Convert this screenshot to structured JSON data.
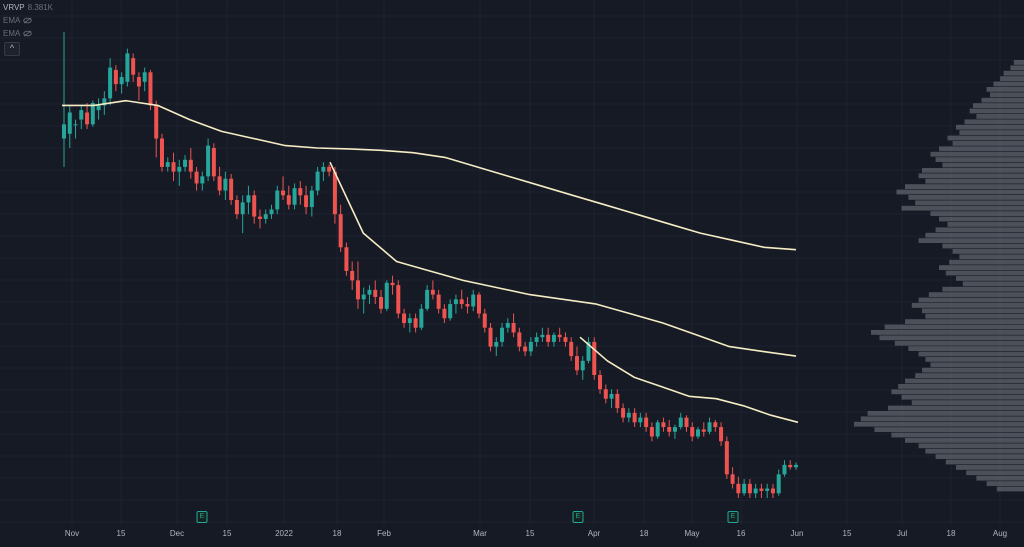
{
  "legend": {
    "vrvp_label": "VRVP",
    "vrvp_value": "8.381K",
    "ema1_label": "EMA",
    "ema2_label": "EMA",
    "collapse_glyph": "^"
  },
  "x_axis_labels": [
    "Nov",
    "15",
    "Dec",
    "15",
    "2022",
    "18",
    "Feb",
    "Mar",
    "15",
    "Apr",
    "18",
    "May",
    "16",
    "Jun",
    "15",
    "Jul",
    "18",
    "Aug"
  ],
  "earnings_markers": [
    {
      "date": "Dec 6",
      "glyph": "E"
    },
    {
      "date": "Mar 29",
      "glyph": "E"
    },
    {
      "date": "May 16",
      "glyph": "E"
    }
  ],
  "colors": {
    "background": "#161a25",
    "up": "#26a69a",
    "down": "#ef5350",
    "ema": "#f5ecc4",
    "volume_profile": "#7a7d85"
  },
  "chart_data": {
    "type": "candlestick",
    "x_type": "date",
    "x_range": [
      "2021-10-29",
      "2022-08-07"
    ],
    "y_range_relative": [
      0,
      1
    ],
    "candles": [
      [
        0.76,
        0.985,
        0.7,
        0.79
      ],
      [
        0.77,
        0.83,
        0.74,
        0.815
      ],
      [
        0.79,
        0.8,
        0.76,
        0.79
      ],
      [
        0.8,
        0.83,
        0.78,
        0.82
      ],
      [
        0.815,
        0.835,
        0.78,
        0.79
      ],
      [
        0.79,
        0.84,
        0.785,
        0.835
      ],
      [
        0.82,
        0.845,
        0.8,
        0.83
      ],
      [
        0.83,
        0.86,
        0.81,
        0.845
      ],
      [
        0.845,
        0.93,
        0.83,
        0.91
      ],
      [
        0.905,
        0.915,
        0.86,
        0.875
      ],
      [
        0.875,
        0.9,
        0.855,
        0.89
      ],
      [
        0.88,
        0.95,
        0.87,
        0.94
      ],
      [
        0.93,
        0.94,
        0.88,
        0.895
      ],
      [
        0.89,
        0.9,
        0.84,
        0.87
      ],
      [
        0.88,
        0.91,
        0.86,
        0.9
      ],
      [
        0.9,
        0.905,
        0.82,
        0.83
      ],
      [
        0.83,
        0.84,
        0.72,
        0.76
      ],
      [
        0.76,
        0.77,
        0.69,
        0.7
      ],
      [
        0.7,
        0.72,
        0.69,
        0.71
      ],
      [
        0.71,
        0.73,
        0.67,
        0.69
      ],
      [
        0.69,
        0.715,
        0.66,
        0.7
      ],
      [
        0.7,
        0.725,
        0.69,
        0.715
      ],
      [
        0.715,
        0.74,
        0.675,
        0.69
      ],
      [
        0.69,
        0.7,
        0.65,
        0.665
      ],
      [
        0.665,
        0.69,
        0.65,
        0.68
      ],
      [
        0.68,
        0.76,
        0.67,
        0.745
      ],
      [
        0.74,
        0.75,
        0.67,
        0.68
      ],
      [
        0.68,
        0.7,
        0.64,
        0.65
      ],
      [
        0.65,
        0.69,
        0.63,
        0.675
      ],
      [
        0.675,
        0.685,
        0.62,
        0.63
      ],
      [
        0.63,
        0.64,
        0.59,
        0.6
      ],
      [
        0.6,
        0.64,
        0.56,
        0.625
      ],
      [
        0.625,
        0.66,
        0.6,
        0.64
      ],
      [
        0.64,
        0.65,
        0.58,
        0.595
      ],
      [
        0.595,
        0.61,
        0.57,
        0.59
      ],
      [
        0.59,
        0.61,
        0.58,
        0.6
      ],
      [
        0.6,
        0.62,
        0.59,
        0.61
      ],
      [
        0.61,
        0.66,
        0.6,
        0.65
      ],
      [
        0.65,
        0.68,
        0.63,
        0.64
      ],
      [
        0.64,
        0.66,
        0.61,
        0.62
      ],
      [
        0.62,
        0.665,
        0.61,
        0.655
      ],
      [
        0.655,
        0.67,
        0.62,
        0.64
      ],
      [
        0.64,
        0.66,
        0.6,
        0.615
      ],
      [
        0.615,
        0.66,
        0.595,
        0.65
      ],
      [
        0.65,
        0.7,
        0.64,
        0.69
      ],
      [
        0.69,
        0.71,
        0.67,
        0.7
      ],
      [
        0.7,
        0.705,
        0.68,
        0.69
      ],
      [
        0.69,
        0.7,
        0.58,
        0.6
      ],
      [
        0.6,
        0.62,
        0.52,
        0.53
      ],
      [
        0.53,
        0.54,
        0.47,
        0.48
      ],
      [
        0.48,
        0.5,
        0.44,
        0.46
      ],
      [
        0.46,
        0.5,
        0.4,
        0.42
      ],
      [
        0.42,
        0.445,
        0.39,
        0.43
      ],
      [
        0.43,
        0.45,
        0.41,
        0.44
      ],
      [
        0.44,
        0.46,
        0.41,
        0.425
      ],
      [
        0.425,
        0.44,
        0.39,
        0.4
      ],
      [
        0.4,
        0.46,
        0.395,
        0.455
      ],
      [
        0.455,
        0.47,
        0.43,
        0.45
      ],
      [
        0.45,
        0.46,
        0.38,
        0.39
      ],
      [
        0.39,
        0.4,
        0.36,
        0.37
      ],
      [
        0.37,
        0.39,
        0.35,
        0.38
      ],
      [
        0.38,
        0.39,
        0.35,
        0.36
      ],
      [
        0.36,
        0.41,
        0.355,
        0.4
      ],
      [
        0.4,
        0.45,
        0.395,
        0.44
      ],
      [
        0.44,
        0.46,
        0.42,
        0.43
      ],
      [
        0.43,
        0.44,
        0.39,
        0.4
      ],
      [
        0.4,
        0.41,
        0.37,
        0.38
      ],
      [
        0.38,
        0.42,
        0.375,
        0.41
      ],
      [
        0.41,
        0.43,
        0.39,
        0.42
      ],
      [
        0.42,
        0.44,
        0.4,
        0.41
      ],
      [
        0.41,
        0.425,
        0.39,
        0.405
      ],
      [
        0.405,
        0.44,
        0.395,
        0.43
      ],
      [
        0.43,
        0.435,
        0.38,
        0.39
      ],
      [
        0.39,
        0.4,
        0.35,
        0.36
      ],
      [
        0.36,
        0.37,
        0.31,
        0.32
      ],
      [
        0.32,
        0.34,
        0.3,
        0.33
      ],
      [
        0.33,
        0.37,
        0.32,
        0.36
      ],
      [
        0.36,
        0.38,
        0.35,
        0.37
      ],
      [
        0.37,
        0.39,
        0.34,
        0.35
      ],
      [
        0.35,
        0.36,
        0.31,
        0.32
      ],
      [
        0.32,
        0.33,
        0.3,
        0.31
      ],
      [
        0.31,
        0.34,
        0.3,
        0.33
      ],
      [
        0.33,
        0.35,
        0.32,
        0.34
      ],
      [
        0.34,
        0.36,
        0.33,
        0.345
      ],
      [
        0.345,
        0.36,
        0.32,
        0.33
      ],
      [
        0.33,
        0.35,
        0.32,
        0.345
      ],
      [
        0.345,
        0.36,
        0.33,
        0.34
      ],
      [
        0.34,
        0.35,
        0.32,
        0.33
      ],
      [
        0.33,
        0.34,
        0.29,
        0.3
      ],
      [
        0.3,
        0.32,
        0.26,
        0.27
      ],
      [
        0.27,
        0.3,
        0.25,
        0.29
      ],
      [
        0.29,
        0.34,
        0.285,
        0.33
      ],
      [
        0.33,
        0.34,
        0.25,
        0.26
      ],
      [
        0.26,
        0.27,
        0.22,
        0.23
      ],
      [
        0.23,
        0.24,
        0.2,
        0.21
      ],
      [
        0.21,
        0.23,
        0.19,
        0.22
      ],
      [
        0.22,
        0.23,
        0.18,
        0.19
      ],
      [
        0.19,
        0.2,
        0.16,
        0.17
      ],
      [
        0.17,
        0.19,
        0.16,
        0.18
      ],
      [
        0.18,
        0.19,
        0.15,
        0.16
      ],
      [
        0.16,
        0.18,
        0.15,
        0.17
      ],
      [
        0.17,
        0.18,
        0.14,
        0.15
      ],
      [
        0.15,
        0.16,
        0.12,
        0.13
      ],
      [
        0.13,
        0.165,
        0.125,
        0.16
      ],
      [
        0.16,
        0.17,
        0.14,
        0.15
      ],
      [
        0.15,
        0.165,
        0.13,
        0.14
      ],
      [
        0.14,
        0.155,
        0.125,
        0.15
      ],
      [
        0.15,
        0.18,
        0.145,
        0.17
      ],
      [
        0.17,
        0.175,
        0.14,
        0.15
      ],
      [
        0.15,
        0.16,
        0.12,
        0.13
      ],
      [
        0.13,
        0.15,
        0.125,
        0.145
      ],
      [
        0.145,
        0.16,
        0.13,
        0.14
      ],
      [
        0.14,
        0.17,
        0.135,
        0.16
      ],
      [
        0.16,
        0.165,
        0.14,
        0.15
      ],
      [
        0.15,
        0.16,
        0.11,
        0.12
      ],
      [
        0.12,
        0.13,
        0.04,
        0.05
      ],
      [
        0.05,
        0.065,
        0.02,
        0.03
      ],
      [
        0.03,
        0.045,
        0.0,
        0.01
      ],
      [
        0.01,
        0.04,
        0.005,
        0.03
      ],
      [
        0.03,
        0.04,
        0.0,
        0.01
      ],
      [
        0.01,
        0.03,
        0.0,
        0.02
      ],
      [
        0.02,
        0.03,
        0.0,
        0.015
      ],
      [
        0.015,
        0.03,
        0.0,
        0.02
      ],
      [
        0.02,
        0.03,
        0.0,
        0.01
      ],
      [
        0.01,
        0.06,
        0.005,
        0.05
      ],
      [
        0.05,
        0.08,
        0.045,
        0.07
      ],
      [
        0.07,
        0.08,
        0.06,
        0.065
      ],
      [
        0.065,
        0.075,
        0.06,
        0.07
      ]
    ],
    "ema_series": [
      {
        "values": [
          0.83,
          0.83,
          0.84,
          0.83,
          0.8,
          0.775,
          0.76,
          0.745,
          0.74,
          0.738,
          0.735,
          0.73,
          0.72,
          0.7,
          0.68,
          0.66,
          0.64,
          0.62,
          0.6,
          0.58,
          0.56,
          0.545,
          0.53,
          0.525
        ]
      },
      {
        "values": [
          0.71,
          0.56,
          0.5,
          0.48,
          0.46,
          0.445,
          0.43,
          0.42,
          0.41,
          0.39,
          0.37,
          0.345,
          0.32,
          0.31,
          0.3
        ]
      },
      {
        "values": [
          0.34,
          0.29,
          0.255,
          0.235,
          0.215,
          0.21,
          0.195,
          0.175,
          0.16
        ]
      }
    ],
    "volume_profile": [
      0.06,
      0.08,
      0.12,
      0.14,
      0.18,
      0.22,
      0.2,
      0.25,
      0.3,
      0.32,
      0.28,
      0.35,
      0.4,
      0.38,
      0.45,
      0.42,
      0.5,
      0.55,
      0.52,
      0.48,
      0.6,
      0.62,
      0.58,
      0.7,
      0.75,
      0.68,
      0.64,
      0.72,
      0.55,
      0.5,
      0.45,
      0.52,
      0.58,
      0.62,
      0.48,
      0.42,
      0.38,
      0.44,
      0.5,
      0.46,
      0.4,
      0.36,
      0.48,
      0.56,
      0.62,
      0.66,
      0.6,
      0.58,
      0.7,
      0.82,
      0.9,
      0.85,
      0.76,
      0.68,
      0.62,
      0.58,
      0.55,
      0.6,
      0.64,
      0.7,
      0.74,
      0.78,
      0.72,
      0.66,
      0.8,
      0.92,
      0.96,
      1.0,
      0.88,
      0.78,
      0.7,
      0.62,
      0.58,
      0.52,
      0.46,
      0.4,
      0.34,
      0.28,
      0.22,
      0.16
    ],
    "legend": "top-left",
    "grid": true
  }
}
